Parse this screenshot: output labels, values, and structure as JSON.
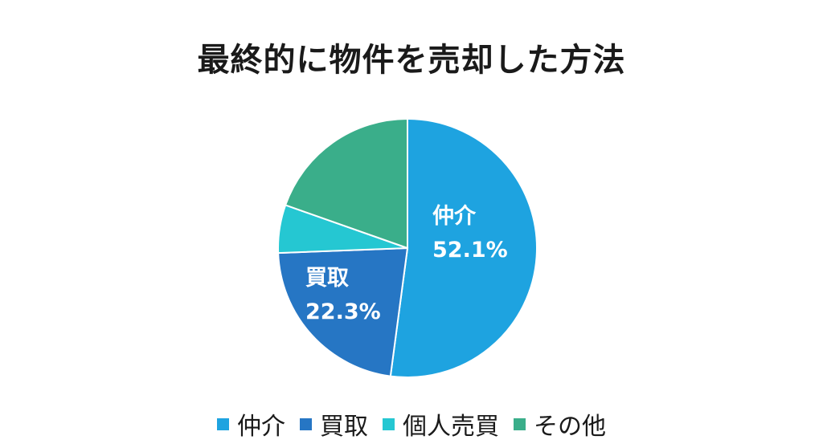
{
  "chart_data": {
    "type": "pie",
    "title": "最終的に物件を売却した方法",
    "slices": [
      {
        "label": "仲介",
        "value": 52.1,
        "value_label": "52.1%",
        "color": "#1ea3e0",
        "show_label": true
      },
      {
        "label": "買取",
        "value": 22.3,
        "value_label": "22.3%",
        "color": "#2676c4",
        "show_label": true
      },
      {
        "label": "個人売買",
        "value": 6.0,
        "value_label": "",
        "color": "#25c7d2",
        "show_label": false
      },
      {
        "label": "その他",
        "value": 19.6,
        "value_label": "",
        "color": "#3aae8a",
        "show_label": false
      }
    ],
    "start_angle_deg": 0,
    "direction": "clockwise",
    "legend_position": "bottom"
  }
}
